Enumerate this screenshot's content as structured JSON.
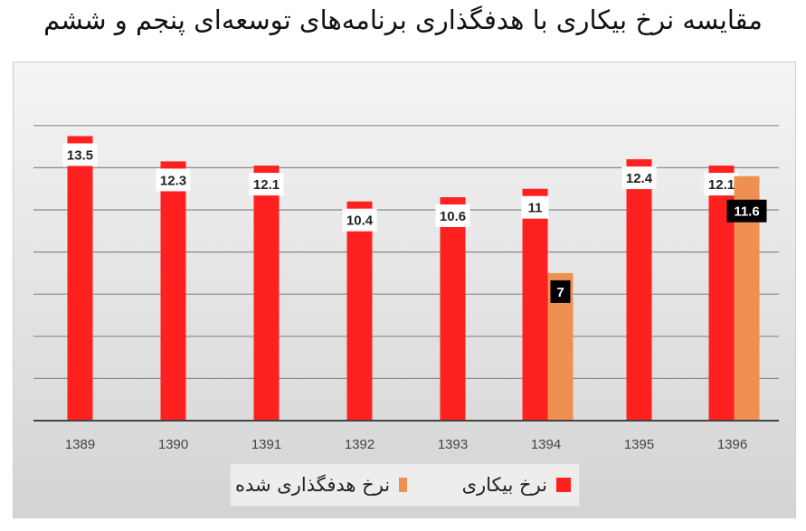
{
  "chart_data": {
    "type": "bar",
    "title": "مقایسه نرخ بیکاری با هدفگذاری برنامه‌های توسعه‌ای پنجم و ششم",
    "categories": [
      "1389",
      "1390",
      "1391",
      "1392",
      "1393",
      "1394",
      "1395",
      "1396"
    ],
    "series": [
      {
        "name": "نرخ بیکاری",
        "color": "#ff2020",
        "values": [
          13.5,
          12.3,
          12.1,
          10.4,
          10.6,
          11,
          12.4,
          12.1
        ],
        "labels": [
          "13.5",
          "12.3",
          "12.1",
          "10.4",
          "10.6",
          "11",
          "12.4",
          "12.1"
        ]
      },
      {
        "name": "نرخ هدفگذاری شده",
        "color": "#ef9050",
        "values": [
          null,
          null,
          null,
          null,
          null,
          7,
          null,
          11.6
        ],
        "labels": [
          "",
          "",
          "",
          "",
          "",
          "7",
          "",
          "11.6"
        ]
      }
    ],
    "ylim": [
      0,
      14
    ],
    "grid": true,
    "legend_position": "bottom"
  }
}
